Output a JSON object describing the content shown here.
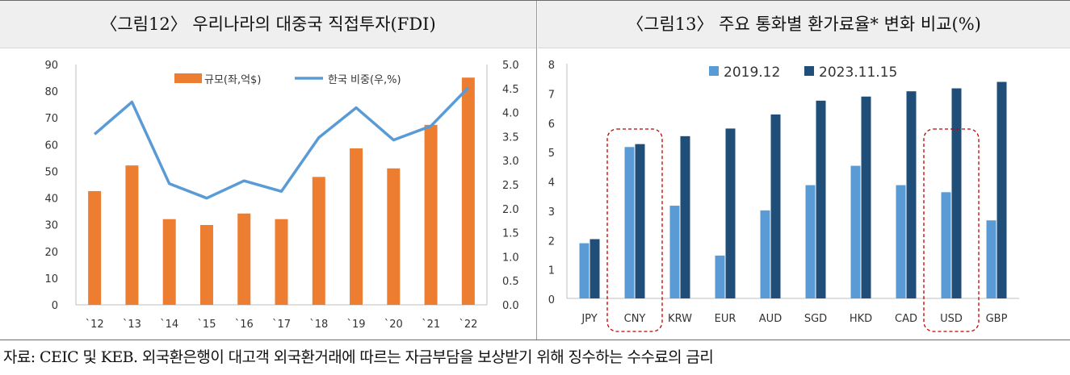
{
  "left_title": "〈그림12〉 우리나라의 대중국 직접투자(FDI)",
  "right_title": "〈그림13〉 주요 통화별 환가료율* 변화 비교(%)",
  "footer": "자료: CEIC 및 KEB. 외국환은행이 대고객 외국환거래에 따르는 자금부담을 보상받기 위해 징수하는 수수료의 금리",
  "colors": {
    "fdi_bar": "#ed7d31",
    "fdi_line": "#5b9bd5",
    "bar_2019": "#5b9bd5",
    "bar_2023": "#1f4e79",
    "highlight_box": "#c00000"
  },
  "chart_data": [
    {
      "type": "bar",
      "title": "〈그림12〉 우리나라의 대중국 직접투자(FDI)",
      "categories": [
        "`12",
        "`13",
        "`14",
        "`15",
        "`16",
        "`17",
        "`18",
        "`19",
        "`20",
        "`21",
        "`22"
      ],
      "series": [
        {
          "name": "규모(좌,억$)",
          "type": "bar",
          "axis": "left",
          "values": [
            42.6,
            52.2,
            32.1,
            29.9,
            34.2,
            32.1,
            47.9,
            58.6,
            51.1,
            67.4,
            85.1
          ]
        },
        {
          "name": "한국 비중(우,%)",
          "type": "line",
          "axis": "right",
          "values": [
            3.55,
            4.22,
            2.52,
            2.22,
            2.58,
            2.36,
            3.48,
            4.1,
            3.43,
            3.72,
            4.52
          ]
        }
      ],
      "ylim_left": [
        0,
        90
      ],
      "yticks_left": [
        "0",
        "10",
        "20",
        "30",
        "40",
        "50",
        "60",
        "70",
        "80",
        "90"
      ],
      "ylim_right": [
        0,
        5
      ],
      "yticks_right": [
        "0.0",
        "0.5",
        "1.0",
        "1.5",
        "2.0",
        "2.5",
        "3.0",
        "3.5",
        "4.0",
        "4.5",
        "5.0"
      ],
      "legend": "top",
      "grid": false
    },
    {
      "type": "bar",
      "title": "〈그림13〉 주요 통화별 환가료율* 변화 비교(%)",
      "categories": [
        "JPY",
        "CNY",
        "KRW",
        "EUR",
        "AUD",
        "SGD",
        "HKD",
        "CAD",
        "USD",
        "GBP"
      ],
      "series": [
        {
          "name": "2019.12",
          "values": [
            1.88,
            5.16,
            3.16,
            1.46,
            3.0,
            3.86,
            4.52,
            3.86,
            3.62,
            2.66
          ]
        },
        {
          "name": "2023.11.15",
          "values": [
            2.02,
            5.26,
            5.53,
            5.79,
            6.27,
            6.74,
            6.88,
            7.06,
            7.16,
            7.38
          ]
        }
      ],
      "ylim": [
        0,
        8
      ],
      "yticks": [
        "0",
        "1",
        "2",
        "3",
        "4",
        "5",
        "6",
        "7",
        "8"
      ],
      "highlighted": [
        "CNY",
        "USD"
      ],
      "legend": "top",
      "grid": false
    }
  ]
}
